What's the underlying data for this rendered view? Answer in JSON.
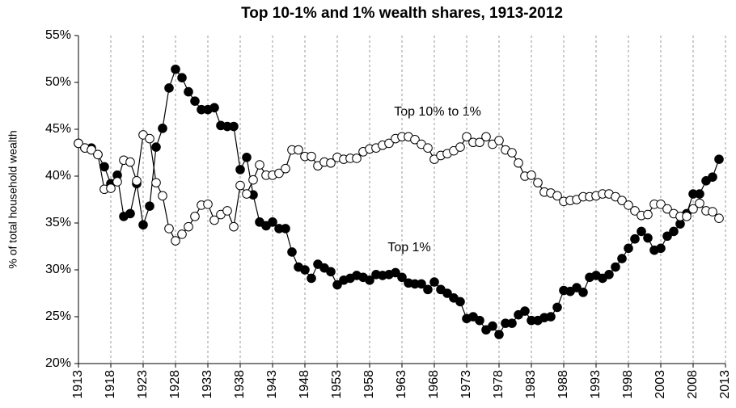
{
  "chart_data": {
    "type": "line",
    "title": "Top 10-1% and 1% wealth shares, 1913-2012",
    "ylabel": "% of total household wealth",
    "annotations": [
      "Top 10% to 1%",
      "Top 1%"
    ],
    "x": [
      1913,
      1914,
      1915,
      1916,
      1917,
      1918,
      1919,
      1920,
      1921,
      1922,
      1923,
      1924,
      1925,
      1926,
      1927,
      1928,
      1929,
      1930,
      1931,
      1932,
      1933,
      1934,
      1935,
      1936,
      1937,
      1938,
      1939,
      1940,
      1941,
      1942,
      1943,
      1944,
      1945,
      1946,
      1947,
      1948,
      1949,
      1950,
      1951,
      1952,
      1953,
      1954,
      1955,
      1956,
      1957,
      1958,
      1959,
      1960,
      1961,
      1962,
      1963,
      1964,
      1965,
      1966,
      1967,
      1968,
      1969,
      1970,
      1971,
      1972,
      1973,
      1974,
      1975,
      1976,
      1977,
      1978,
      1979,
      1980,
      1981,
      1982,
      1983,
      1984,
      1985,
      1986,
      1987,
      1988,
      1989,
      1990,
      1991,
      1992,
      1993,
      1994,
      1995,
      1996,
      1997,
      1998,
      1999,
      2000,
      2001,
      2002,
      2003,
      2004,
      2005,
      2006,
      2007,
      2008,
      2009,
      2010,
      2011,
      2012
    ],
    "series": [
      {
        "name": "Top 1%",
        "color": "#000000",
        "values": [
          43.5,
          43.0,
          43.0,
          42.3,
          41.0,
          39.2,
          40.1,
          35.7,
          36.0,
          39.2,
          34.8,
          36.8,
          43.1,
          45.1,
          49.4,
          51.4,
          50.5,
          49.0,
          48.0,
          47.1,
          47.1,
          47.3,
          45.4,
          45.3,
          45.3,
          40.7,
          42.0,
          38.0,
          35.1,
          34.7,
          35.1,
          34.4,
          34.4,
          31.9,
          30.3,
          30.0,
          29.1,
          30.6,
          30.2,
          29.8,
          28.4,
          28.9,
          29.1,
          29.4,
          29.2,
          28.9,
          29.5,
          29.4,
          29.5,
          29.7,
          29.2,
          28.6,
          28.5,
          28.5,
          27.9,
          28.7,
          27.9,
          27.5,
          27.0,
          26.6,
          24.8,
          25.0,
          24.6,
          23.6,
          24.0,
          23.1,
          24.3,
          24.3,
          25.2,
          25.6,
          24.6,
          24.6,
          24.9,
          25.0,
          26.0,
          27.8,
          27.7,
          28.1,
          27.6,
          29.2,
          29.4,
          29.1,
          29.5,
          30.3,
          31.2,
          32.3,
          33.3,
          34.1,
          33.4,
          32.1,
          32.3,
          33.6,
          34.1,
          34.9,
          36.0,
          38.1,
          38.1,
          39.5,
          39.9,
          41.8
        ]
      },
      {
        "name": "Top 10% to 1%",
        "color": "#ffffff",
        "values": [
          43.5,
          43.0,
          42.8,
          42.3,
          38.6,
          38.7,
          39.4,
          41.7,
          41.5,
          39.5,
          44.4,
          44.0,
          39.3,
          37.9,
          34.4,
          33.1,
          33.8,
          34.6,
          35.7,
          36.9,
          37.0,
          35.3,
          35.9,
          36.3,
          34.6,
          39.0,
          38.1,
          39.6,
          41.2,
          40.1,
          40.1,
          40.3,
          40.8,
          42.8,
          42.8,
          42.1,
          42.1,
          41.1,
          41.5,
          41.4,
          42.0,
          41.8,
          41.9,
          41.9,
          42.6,
          42.9,
          43.0,
          43.3,
          43.5,
          44.0,
          44.2,
          44.2,
          43.9,
          43.4,
          43.0,
          41.8,
          42.2,
          42.4,
          42.7,
          43.1,
          44.2,
          43.6,
          43.6,
          44.2,
          43.4,
          43.8,
          42.8,
          42.5,
          41.4,
          40.0,
          40.1,
          39.3,
          38.3,
          38.2,
          37.9,
          37.3,
          37.4,
          37.5,
          37.8,
          37.8,
          37.9,
          38.1,
          38.1,
          37.8,
          37.4,
          36.9,
          36.3,
          35.8,
          35.9,
          37.0,
          37.0,
          36.5,
          36.0,
          35.7,
          35.7,
          36.5,
          37.1,
          36.3,
          36.2,
          35.5
        ]
      }
    ],
    "xlim": [
      1913,
      2013
    ],
    "xticks": [
      1913,
      1918,
      1923,
      1928,
      1933,
      1938,
      1943,
      1948,
      1953,
      1958,
      1963,
      1968,
      1973,
      1978,
      1983,
      1988,
      1993,
      1998,
      2003,
      2008,
      2013
    ],
    "ylim": [
      20,
      55
    ],
    "yticks": [
      {
        "value": 20,
        "label": "20%"
      },
      {
        "value": 25,
        "label": "25%"
      },
      {
        "value": 30,
        "label": "30%"
      },
      {
        "value": 35,
        "label": "35%"
      },
      {
        "value": 40,
        "label": "40%"
      },
      {
        "value": 45,
        "label": "45%"
      },
      {
        "value": 50,
        "label": "50%"
      },
      {
        "value": 55,
        "label": "55%"
      }
    ],
    "grid": "x",
    "line_color": "#000000"
  }
}
